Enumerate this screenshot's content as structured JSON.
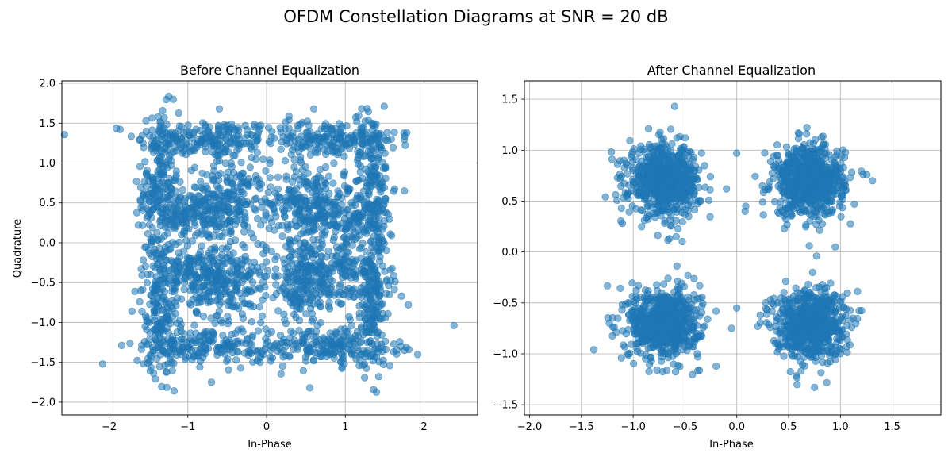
{
  "figure": {
    "title": "OFDM Constellation Diagrams at SNR = 20 dB"
  },
  "chart_data": [
    {
      "type": "scatter",
      "title": "Before Channel Equalization",
      "xlabel": "In-Phase",
      "ylabel": "Quadrature",
      "xlim": [
        -2.6,
        2.68
      ],
      "ylim": [
        -2.16,
        2.03
      ],
      "xticks": [
        -2,
        -1,
        0,
        1,
        2
      ],
      "yticks": [
        -2.0,
        -1.5,
        -1.0,
        -0.5,
        0.0,
        0.5,
        1.0,
        1.5,
        2.0
      ],
      "xtick_labels": [
        "−2",
        "−1",
        "0",
        "1",
        "2"
      ],
      "ytick_labels": [
        "−2.0",
        "−1.5",
        "−1.0",
        "−0.5",
        "0.0",
        "0.5",
        "1.0",
        "1.5",
        "2.0"
      ],
      "grid": true,
      "marker_color": "#1f77b4",
      "marker_alpha": 0.55,
      "description_of_distribution": "QPSK symbols rotated by channel phase, smeared into arcs around four corners",
      "series": [
        {
          "clusters": [
            {
              "center": [
                -0.75,
                1.3
              ],
              "spread": [
                0.45,
                0.12
              ],
              "count": 190
            },
            {
              "center": [
                -1.35,
                0.75
              ],
              "spread": [
                0.12,
                0.45
              ],
              "count": 190
            },
            {
              "center": [
                -0.5,
                0.5
              ],
              "spread": [
                0.25,
                0.25
              ],
              "count": 230
            },
            {
              "center": [
                -1.0,
                0.35
              ],
              "spread": [
                0.25,
                0.15
              ],
              "count": 120
            },
            {
              "center": [
                0.75,
                1.3
              ],
              "spread": [
                0.45,
                0.12
              ],
              "count": 190
            },
            {
              "center": [
                1.35,
                0.75
              ],
              "spread": [
                0.12,
                0.45
              ],
              "count": 190
            },
            {
              "center": [
                0.5,
                0.5
              ],
              "spread": [
                0.25,
                0.25
              ],
              "count": 230
            },
            {
              "center": [
                1.0,
                0.3
              ],
              "spread": [
                0.25,
                0.15
              ],
              "count": 120
            },
            {
              "center": [
                -0.75,
                -1.3
              ],
              "spread": [
                0.45,
                0.12
              ],
              "count": 190
            },
            {
              "center": [
                -1.35,
                -0.75
              ],
              "spread": [
                0.12,
                0.45
              ],
              "count": 190
            },
            {
              "center": [
                -0.5,
                -0.5
              ],
              "spread": [
                0.25,
                0.25
              ],
              "count": 230
            },
            {
              "center": [
                -1.0,
                -0.35
              ],
              "spread": [
                0.25,
                0.15
              ],
              "count": 120
            },
            {
              "center": [
                0.75,
                -1.3
              ],
              "spread": [
                0.45,
                0.12
              ],
              "count": 190
            },
            {
              "center": [
                1.35,
                -0.75
              ],
              "spread": [
                0.12,
                0.45
              ],
              "count": 190
            },
            {
              "center": [
                0.5,
                -0.5
              ],
              "spread": [
                0.25,
                0.25
              ],
              "count": 230
            },
            {
              "center": [
                1.0,
                -0.35
              ],
              "spread": [
                0.25,
                0.15
              ],
              "count": 120
            }
          ],
          "outliers": [
            [
              1.78,
              1.38
            ],
            [
              1.8,
              -0.78
            ],
            [
              1.75,
              0.65
            ],
            [
              1.75,
              -1.35
            ],
            [
              0.55,
              -1.82
            ],
            [
              -0.7,
              -1.75
            ],
            [
              0.6,
              1.68
            ],
            [
              -0.6,
              1.68
            ],
            [
              0.35,
              0.95
            ],
            [
              -0.3,
              -0.95
            ],
            [
              0.75,
              0.95
            ]
          ]
        }
      ]
    },
    {
      "type": "scatter",
      "title": "After Channel Equalization",
      "xlabel": "In-Phase",
      "ylabel": "",
      "xlim": [
        -2.05,
        1.97
      ],
      "ylim": [
        -1.6,
        1.68
      ],
      "xticks": [
        -2.0,
        -1.5,
        -1.0,
        -0.5,
        0.0,
        0.5,
        1.0,
        1.5
      ],
      "yticks": [
        -1.5,
        -1.0,
        -0.5,
        0.0,
        0.5,
        1.0,
        1.5
      ],
      "xtick_labels": [
        "−2.0",
        "−1.5",
        "−1.0",
        "−0.5",
        "0.0",
        "0.5",
        "1.0",
        "1.5"
      ],
      "ytick_labels": [
        "−1.5",
        "−1.0",
        "−0.5",
        "0.0",
        "0.5",
        "1.0",
        "1.5"
      ],
      "grid": true,
      "marker_color": "#1f77b4",
      "marker_alpha": 0.55,
      "description_of_distribution": "Four tight QPSK clusters at (±0.7, ±0.7)",
      "series": [
        {
          "clusters": [
            {
              "center": [
                -0.7,
                0.7
              ],
              "spread": [
                0.17,
                0.17
              ],
              "count": 700
            },
            {
              "center": [
                0.7,
                0.7
              ],
              "spread": [
                0.17,
                0.17
              ],
              "count": 700
            },
            {
              "center": [
                -0.7,
                -0.7
              ],
              "spread": [
                0.17,
                0.17
              ],
              "count": 700
            },
            {
              "center": [
                0.7,
                -0.7
              ],
              "spread": [
                0.17,
                0.17
              ],
              "count": 700
            }
          ],
          "outliers": [
            [
              -0.6,
              1.43
            ],
            [
              -1.38,
              -0.96
            ],
            [
              1.31,
              0.7
            ],
            [
              0.7,
              0.06
            ],
            [
              0.77,
              -0.04
            ],
            [
              -0.65,
              0.13
            ],
            [
              0.75,
              -1.33
            ],
            [
              0.95,
              0.05
            ],
            [
              -0.1,
              0.62
            ],
            [
              -0.2,
              -1.12
            ],
            [
              0.0,
              0.97
            ],
            [
              0.08,
              0.4
            ],
            [
              -0.05,
              -0.75
            ],
            [
              0.0,
              -0.55
            ],
            [
              -0.2,
              -0.58
            ]
          ]
        }
      ]
    }
  ]
}
